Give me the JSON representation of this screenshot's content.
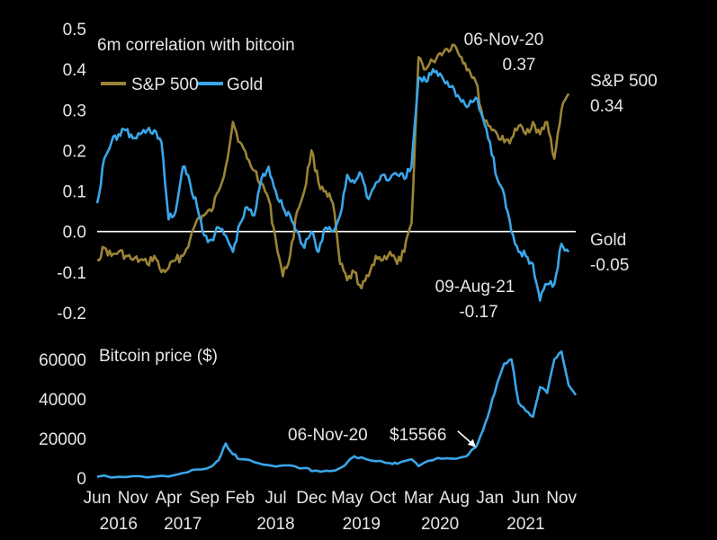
{
  "chart_data": [
    {
      "type": "line",
      "title": "6m correlation with bitcoin",
      "ylim": [
        -0.2,
        0.5
      ],
      "y_ticks": [
        "0.5",
        "0.4",
        "0.3",
        "0.2",
        "0.1",
        "0.0",
        "-0.1",
        "-0.2"
      ],
      "legend_placement": "top-left",
      "zero_line": true,
      "series": [
        {
          "name": "S&P 500",
          "color": "#9c8436",
          "points": [
            [
              "2016-06",
              -0.07
            ],
            [
              "2016-07",
              -0.04
            ],
            [
              "2016-08",
              -0.06
            ],
            [
              "2016-09",
              -0.05
            ],
            [
              "2016-10",
              -0.06
            ],
            [
              "2016-11",
              -0.07
            ],
            [
              "2016-12",
              -0.07
            ],
            [
              "2017-01",
              -0.08
            ],
            [
              "2017-02",
              -0.06
            ],
            [
              "2017-03",
              -0.1
            ],
            [
              "2017-04",
              -0.09
            ],
            [
              "2017-05",
              -0.07
            ],
            [
              "2017-06",
              -0.06
            ],
            [
              "2017-07",
              -0.02
            ],
            [
              "2017-08",
              0.03
            ],
            [
              "2017-09",
              0.04
            ],
            [
              "2017-10",
              0.05
            ],
            [
              "2017-11",
              0.1
            ],
            [
              "2017-12",
              0.16
            ],
            [
              "2018-01",
              0.27
            ],
            [
              "2018-02",
              0.22
            ],
            [
              "2018-03",
              0.18
            ],
            [
              "2018-04",
              0.15
            ],
            [
              "2018-05",
              0.12
            ],
            [
              "2018-06",
              0.08
            ],
            [
              "2018-07",
              -0.02
            ],
            [
              "2018-08",
              -0.11
            ],
            [
              "2018-09",
              -0.06
            ],
            [
              "2018-10",
              0.05
            ],
            [
              "2018-11",
              0.1
            ],
            [
              "2018-12",
              0.2
            ],
            [
              "2019-01",
              0.12
            ],
            [
              "2019-02",
              0.1
            ],
            [
              "2019-03",
              0.07
            ],
            [
              "2019-04",
              -0.08
            ],
            [
              "2019-05",
              -0.12
            ],
            [
              "2019-06",
              -0.1
            ],
            [
              "2019-07",
              -0.14
            ],
            [
              "2019-08",
              -0.11
            ],
            [
              "2019-09",
              -0.06
            ],
            [
              "2019-10",
              -0.07
            ],
            [
              "2019-11",
              -0.05
            ],
            [
              "2019-12",
              -0.08
            ],
            [
              "2020-01",
              -0.05
            ],
            [
              "2020-02",
              0.02
            ],
            [
              "2020-03",
              0.43
            ],
            [
              "2020-04",
              0.4
            ],
            [
              "2020-05",
              0.42
            ],
            [
              "2020-06",
              0.44
            ],
            [
              "2020-07",
              0.45
            ],
            [
              "2020-08",
              0.46
            ],
            [
              "2020-09",
              0.43
            ],
            [
              "2020-10",
              0.4
            ],
            [
              "2020-11",
              0.37
            ],
            [
              "2020-12",
              0.28
            ],
            [
              "2021-01",
              0.26
            ],
            [
              "2021-02",
              0.24
            ],
            [
              "2021-03",
              0.22
            ],
            [
              "2021-04",
              0.23
            ],
            [
              "2021-05",
              0.26
            ],
            [
              "2021-06",
              0.24
            ],
            [
              "2021-07",
              0.27
            ],
            [
              "2021-08",
              0.24
            ],
            [
              "2021-09",
              0.27
            ],
            [
              "2021-10",
              0.18
            ],
            [
              "2021-11",
              0.3
            ],
            [
              "2021-12",
              0.34
            ]
          ]
        },
        {
          "name": "Gold",
          "color": "#3aa6ea",
          "points": [
            [
              "2016-06",
              0.07
            ],
            [
              "2016-07",
              0.18
            ],
            [
              "2016-08",
              0.22
            ],
            [
              "2016-09",
              0.24
            ],
            [
              "2016-10",
              0.25
            ],
            [
              "2016-11",
              0.23
            ],
            [
              "2016-12",
              0.24
            ],
            [
              "2017-01",
              0.25
            ],
            [
              "2017-02",
              0.25
            ],
            [
              "2017-03",
              0.22
            ],
            [
              "2017-04",
              0.03
            ],
            [
              "2017-05",
              0.05
            ],
            [
              "2017-06",
              0.16
            ],
            [
              "2017-07",
              0.12
            ],
            [
              "2017-08",
              0.06
            ],
            [
              "2017-09",
              -0.01
            ],
            [
              "2017-10",
              -0.02
            ],
            [
              "2017-11",
              0.01
            ],
            [
              "2017-12",
              -0.01
            ],
            [
              "2018-01",
              -0.05
            ],
            [
              "2018-02",
              0.02
            ],
            [
              "2018-03",
              0.06
            ],
            [
              "2018-04",
              0.04
            ],
            [
              "2018-05",
              0.13
            ],
            [
              "2018-06",
              0.16
            ],
            [
              "2018-07",
              0.1
            ],
            [
              "2018-08",
              0.06
            ],
            [
              "2018-09",
              0.04
            ],
            [
              "2018-10",
              0.0
            ],
            [
              "2018-11",
              -0.04
            ],
            [
              "2018-12",
              0.0
            ],
            [
              "2019-01",
              -0.05
            ],
            [
              "2019-02",
              0.01
            ],
            [
              "2019-03",
              0.0
            ],
            [
              "2019-04",
              0.04
            ],
            [
              "2019-05",
              0.14
            ],
            [
              "2019-06",
              0.12
            ],
            [
              "2019-07",
              0.14
            ],
            [
              "2019-08",
              0.08
            ],
            [
              "2019-09",
              0.12
            ],
            [
              "2019-10",
              0.14
            ],
            [
              "2019-11",
              0.13
            ],
            [
              "2019-12",
              0.14
            ],
            [
              "2020-01",
              0.13
            ],
            [
              "2020-02",
              0.16
            ],
            [
              "2020-03",
              0.38
            ],
            [
              "2020-04",
              0.37
            ],
            [
              "2020-05",
              0.4
            ],
            [
              "2020-06",
              0.39
            ],
            [
              "2020-07",
              0.37
            ],
            [
              "2020-08",
              0.35
            ],
            [
              "2020-09",
              0.32
            ],
            [
              "2020-10",
              0.31
            ],
            [
              "2020-11",
              0.33
            ],
            [
              "2020-12",
              0.28
            ],
            [
              "2021-01",
              0.22
            ],
            [
              "2021-02",
              0.13
            ],
            [
              "2021-03",
              0.09
            ],
            [
              "2021-04",
              0.0
            ],
            [
              "2021-05",
              -0.05
            ],
            [
              "2021-06",
              -0.06
            ],
            [
              "2021-07",
              -0.08
            ],
            [
              "2021-08",
              -0.17
            ],
            [
              "2021-09",
              -0.13
            ],
            [
              "2021-10",
              -0.13
            ],
            [
              "2021-11",
              -0.03
            ],
            [
              "2021-12",
              -0.05
            ]
          ]
        }
      ],
      "annotations": {
        "sp_peak": {
          "date": "06-Nov-20",
          "value": "0.37"
        },
        "sp_end": {
          "label": "S&P 500",
          "value": "0.34"
        },
        "gold_end": {
          "label": "Gold",
          "value": "-0.05"
        },
        "gold_low": {
          "date": "09-Aug-21",
          "value": "-0.17"
        }
      }
    },
    {
      "type": "line",
      "title": "Bitcoin price ($)",
      "ylim": [
        0,
        70000
      ],
      "y_ticks": [
        "60000",
        "40000",
        "20000",
        "0"
      ],
      "series": [
        {
          "color": "#3aa6ea",
          "points": [
            [
              "2016-06",
              650
            ],
            [
              "2016-09",
              600
            ],
            [
              "2016-12",
              900
            ],
            [
              "2017-03",
              1100
            ],
            [
              "2017-06",
              2500
            ],
            [
              "2017-08",
              4300
            ],
            [
              "2017-10",
              5800
            ],
            [
              "2017-11",
              9000
            ],
            [
              "2017-12",
              17500
            ],
            [
              "2018-01",
              12000
            ],
            [
              "2018-02",
              9500
            ],
            [
              "2018-04",
              8000
            ],
            [
              "2018-06",
              6500
            ],
            [
              "2018-09",
              6400
            ],
            [
              "2018-11",
              5000
            ],
            [
              "2018-12",
              3500
            ],
            [
              "2019-02",
              3700
            ],
            [
              "2019-04",
              5000
            ],
            [
              "2019-06",
              11000
            ],
            [
              "2019-07",
              10500
            ],
            [
              "2019-09",
              8500
            ],
            [
              "2019-11",
              7500
            ],
            [
              "2019-12",
              7200
            ],
            [
              "2020-02",
              9500
            ],
            [
              "2020-03",
              6000
            ],
            [
              "2020-05",
              9000
            ],
            [
              "2020-07",
              10000
            ],
            [
              "2020-09",
              10500
            ],
            [
              "2020-10",
              12000
            ],
            [
              "2020-11",
              15566
            ],
            [
              "2020-12",
              24000
            ],
            [
              "2021-01",
              35000
            ],
            [
              "2021-02",
              48000
            ],
            [
              "2021-03",
              58000
            ],
            [
              "2021-04",
              60000
            ],
            [
              "2021-05",
              38000
            ],
            [
              "2021-06",
              34000
            ],
            [
              "2021-07",
              31000
            ],
            [
              "2021-08",
              46000
            ],
            [
              "2021-09",
              43000
            ],
            [
              "2021-10",
              60000
            ],
            [
              "2021-11",
              64000
            ],
            [
              "2021-12",
              47000
            ],
            [
              "2022-01",
              42000
            ]
          ]
        }
      ],
      "annotations": {
        "date": "06-Nov-20",
        "price": "$15566",
        "arrow_to": [
          "2020-11",
          15566
        ]
      }
    }
  ],
  "x_axis": {
    "month_labels": [
      {
        "label": "Jun",
        "date": "2016-06"
      },
      {
        "label": "Nov",
        "date": "2016-11"
      },
      {
        "label": "Apr",
        "date": "2017-04"
      },
      {
        "label": "Sep",
        "date": "2017-09"
      },
      {
        "label": "Feb",
        "date": "2018-02"
      },
      {
        "label": "Jul",
        "date": "2018-07"
      },
      {
        "label": "Dec",
        "date": "2018-12"
      },
      {
        "label": "May",
        "date": "2019-05"
      },
      {
        "label": "Oct",
        "date": "2019-10"
      },
      {
        "label": "Mar",
        "date": "2020-03"
      },
      {
        "label": "Aug",
        "date": "2020-08"
      },
      {
        "label": "Jan",
        "date": "2021-01"
      },
      {
        "label": "Jun",
        "date": "2021-06"
      },
      {
        "label": "Nov",
        "date": "2021-11"
      }
    ],
    "year_labels": [
      {
        "label": "2016",
        "date": "2016-09"
      },
      {
        "label": "2017",
        "date": "2017-06"
      },
      {
        "label": "2018",
        "date": "2018-07"
      },
      {
        "label": "2019",
        "date": "2019-07"
      },
      {
        "label": "2020",
        "date": "2020-06"
      },
      {
        "label": "2021",
        "date": "2021-06"
      }
    ],
    "range": [
      "2016-06",
      "2022-01"
    ]
  }
}
